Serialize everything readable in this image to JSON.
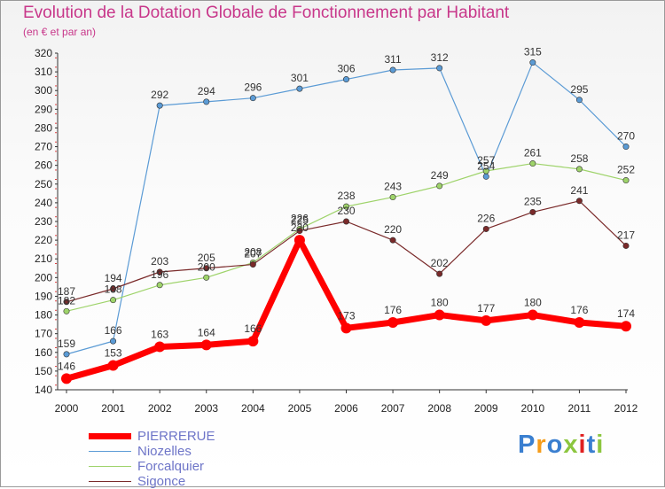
{
  "header": {
    "title": "Evolution de la Dotation Globale de Fonctionnement par Habitant",
    "subtitle": "(en € et par an)"
  },
  "chart_data": {
    "type": "line",
    "title": "Evolution de la Dotation Globale de Fonctionnement par Habitant",
    "subtitle": "(en € et par an)",
    "xlabel": "",
    "ylabel": "",
    "x": [
      "2000",
      "2001",
      "2002",
      "2003",
      "2004",
      "2005",
      "2006",
      "2007",
      "2008",
      "2009",
      "2010",
      "2011",
      "2012"
    ],
    "ylim": [
      140,
      320
    ],
    "yticks": [
      140,
      150,
      160,
      170,
      180,
      190,
      200,
      210,
      220,
      230,
      240,
      250,
      260,
      270,
      280,
      290,
      300,
      310,
      320
    ],
    "grid": false,
    "legend_position": "bottom-left",
    "series": [
      {
        "name": "Niozelles",
        "color": "#5b9bd5",
        "values": [
          159,
          166,
          292,
          294,
          296,
          301,
          306,
          311,
          312,
          254,
          315,
          295,
          270
        ],
        "labels": [
          "159",
          "166",
          "292",
          "294",
          "296",
          "301",
          "306",
          "311",
          "312",
          "254",
          "315",
          "295",
          "270"
        ]
      },
      {
        "name": "Forcalquier",
        "color": "#9ed36a",
        "values": [
          182,
          188,
          196,
          200,
          208,
          226,
          238,
          243,
          249,
          257,
          261,
          258,
          252
        ],
        "labels": [
          "182",
          "188",
          "196",
          "200",
          "208",
          "226",
          "238",
          "243",
          "249",
          "257",
          "261",
          "258",
          "252"
        ]
      },
      {
        "name": "Sigonce",
        "color": "#7a2a2a",
        "values": [
          187,
          194,
          203,
          205,
          207,
          225,
          230,
          220,
          202,
          226,
          235,
          241,
          217
        ],
        "labels": [
          "187",
          "194",
          "203",
          "205",
          "207",
          "225",
          "230",
          "220",
          "202",
          "226",
          "235",
          "241",
          "217"
        ]
      },
      {
        "name": "PIERRERUE",
        "color": "#ff0000",
        "values": [
          146,
          153,
          163,
          164,
          166,
          220,
          173,
          176,
          180,
          177,
          180,
          176,
          174
        ],
        "labels": [
          "146",
          "153",
          "163",
          "164",
          "166",
          "220",
          "173",
          "176",
          "180",
          "177",
          "180",
          "176",
          "174"
        ]
      }
    ]
  },
  "legend": {
    "items": [
      {
        "label": "PIERRERUE",
        "color": "#ff0000"
      },
      {
        "label": "Niozelles",
        "color": "#5b9bd5"
      },
      {
        "label": "Forcalquier",
        "color": "#9ed36a"
      },
      {
        "label": "Sigonce",
        "color": "#7a2a2a"
      }
    ]
  },
  "brand": {
    "logo_text": "Proxiti",
    "letter_colors": [
      "#3a7fd0",
      "#f59c1a",
      "#3a7fd0",
      "#8cc63f",
      "#e02020",
      "#3a7fd0",
      "#8cc63f"
    ]
  }
}
